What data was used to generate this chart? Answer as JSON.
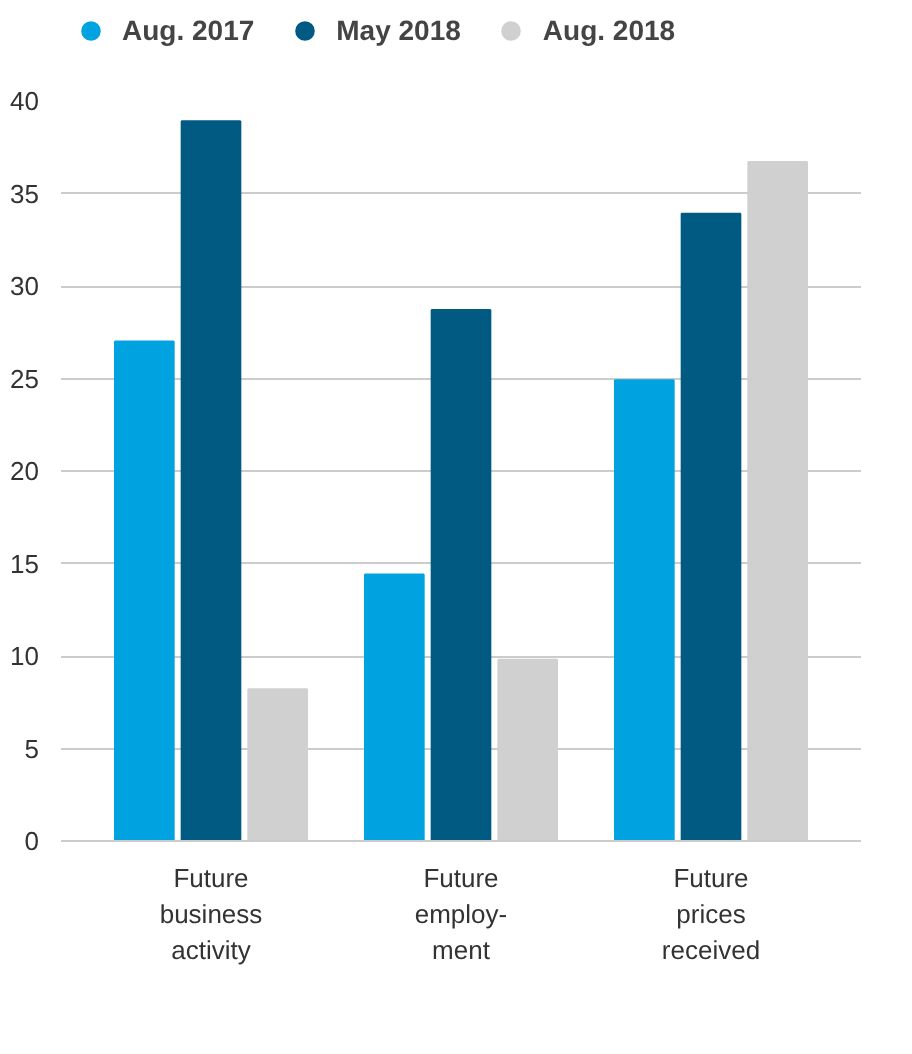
{
  "chart_data": {
    "type": "bar",
    "categories": [
      "Future\nbusiness\nactivity",
      "Future\nemploy-\nment",
      "Future\nprices\nreceived"
    ],
    "series": [
      {
        "name": "Aug. 2017",
        "color": "#00a3e0",
        "values": [
          27.0,
          14.4,
          24.9
        ]
      },
      {
        "name": "May 2018",
        "color": "#005a82",
        "values": [
          38.9,
          28.7,
          33.9
        ]
      },
      {
        "name": "Aug. 2018",
        "color": "#d0d0d0",
        "values": [
          8.2,
          9.8,
          36.7
        ]
      }
    ],
    "ylim": [
      0,
      40
    ],
    "yticks": [
      0,
      5,
      10,
      15,
      20,
      25,
      30,
      35,
      40
    ],
    "grid": "y",
    "legend": "top"
  }
}
